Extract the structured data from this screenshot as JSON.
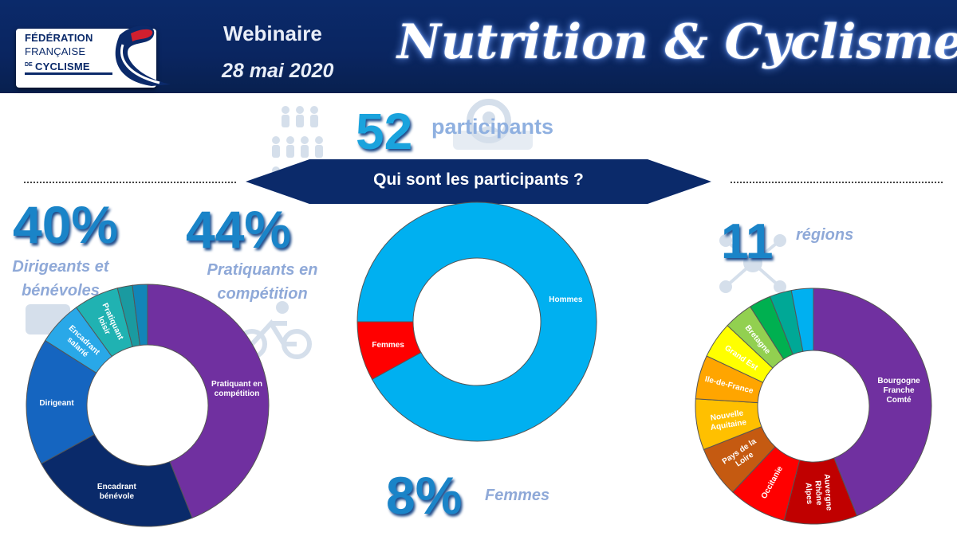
{
  "header": {
    "logo": {
      "line1": "FÉDÉRATION",
      "line2": "FRANÇAISE",
      "line3": "CYCLISME",
      "de": "DE"
    },
    "webinaire": "Webinaire",
    "date": "28 mai 2020",
    "title": "Nutrition & Cyclisme"
  },
  "banner": {
    "label": "Qui sont les participants ?"
  },
  "stats": {
    "participants": {
      "value": "52",
      "label": "participants"
    },
    "dirigeants": {
      "value": "40%",
      "label_line1": "Dirigeants et",
      "label_line2": "bénévoles"
    },
    "pratiquants": {
      "value": "44%",
      "label_line1": "Pratiquants en",
      "label_line2": "compétition"
    },
    "regions": {
      "value": "11",
      "label": "régions"
    },
    "femmes": {
      "value": "8%",
      "label": "Femmes"
    }
  },
  "colors": {
    "header_bg": "#0a2560",
    "accent_blue": "#1aa3dd",
    "label_blue": "#8fa9d8"
  },
  "chart_data": [
    {
      "type": "pie",
      "style": "donut",
      "slices": [
        {
          "label": "Pratiquant en compétition",
          "value": 44,
          "color": "#7030a0"
        },
        {
          "label": "Encadrant bénévole",
          "value": 23,
          "color": "#0a2a6a"
        },
        {
          "label": "Dirigeant",
          "value": 17,
          "color": "#1565c0"
        },
        {
          "label": "Encadrant salarié",
          "value": 6,
          "color": "#29a8e8"
        },
        {
          "label": "Pratiquant loisir",
          "value": 6,
          "color": "#20b2b2"
        },
        {
          "label": "",
          "value": 2,
          "color": "#1a9aa0"
        },
        {
          "label": "",
          "value": 2,
          "color": "#1285b8"
        }
      ]
    },
    {
      "type": "pie",
      "style": "donut",
      "slices": [
        {
          "label": "Hommes",
          "value": 92,
          "color": "#00b0f0"
        },
        {
          "label": "Femmes",
          "value": 8,
          "color": "#ff0000"
        }
      ]
    },
    {
      "type": "pie",
      "style": "donut",
      "slices": [
        {
          "label": "Bourgogne-Franche-Comté",
          "value": 44,
          "color": "#7030a0"
        },
        {
          "label": "Auvergne-Rhône-Alpes",
          "value": 10,
          "color": "#c00000"
        },
        {
          "label": "Occitanie",
          "value": 8,
          "color": "#ff0000"
        },
        {
          "label": "Pays de la Loire",
          "value": 7,
          "color": "#c55a11"
        },
        {
          "label": "Nouvelle-Aquitaine",
          "value": 7,
          "color": "#ffc000"
        },
        {
          "label": "Ile-de-France",
          "value": 6,
          "color": "#ffa500"
        },
        {
          "label": "Grand Est",
          "value": 5,
          "color": "#ffff00"
        },
        {
          "label": "Bretagne",
          "value": 4,
          "color": "#92d050"
        },
        {
          "label": "",
          "value": 3,
          "color": "#00b050"
        },
        {
          "label": "",
          "value": 3,
          "color": "#00a896"
        },
        {
          "label": "",
          "value": 3,
          "color": "#00b0f0"
        }
      ]
    }
  ]
}
